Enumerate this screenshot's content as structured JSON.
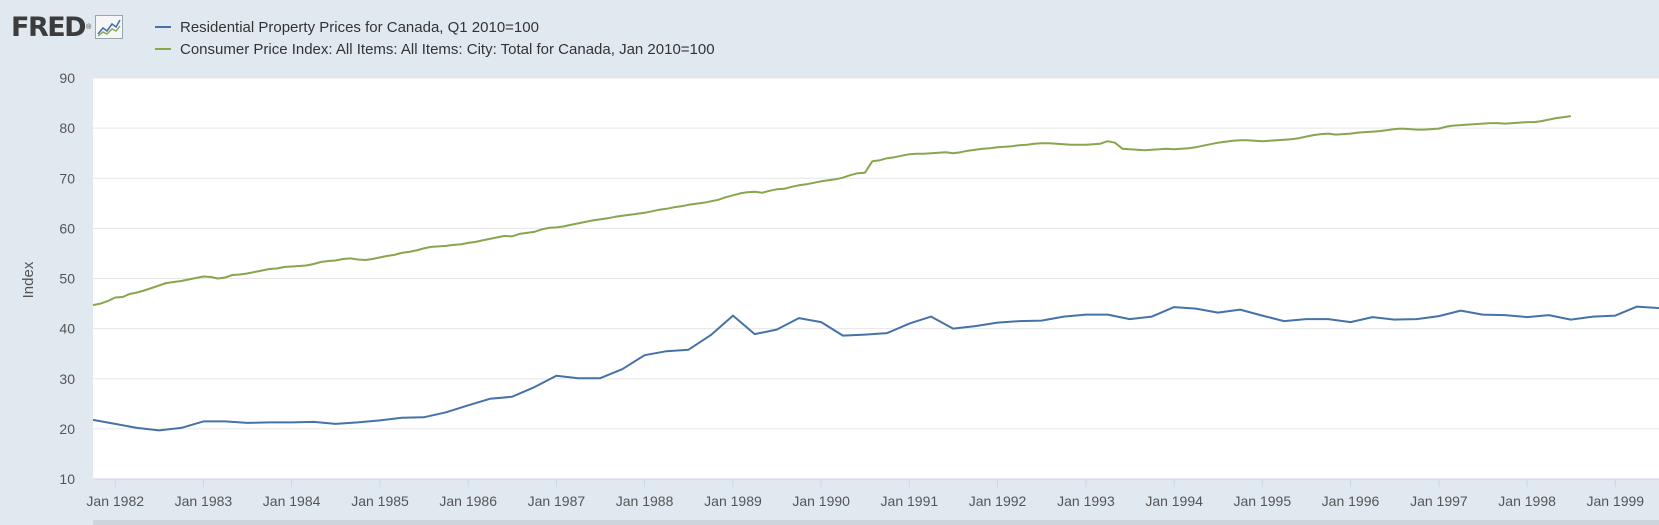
{
  "header": {
    "logo_text": "FRED",
    "logo_mark": "®",
    "logo_icon": "fred-chart-icon"
  },
  "colors": {
    "background": "#e1e9f0",
    "plot_background": "#ffffff",
    "gridline": "#e6e6e6",
    "series_property": "#4572a7",
    "series_cpi": "#89a54e"
  },
  "chart_data": {
    "type": "line",
    "title": "",
    "xlabel": "",
    "ylabel": "Index",
    "ylim": [
      10,
      90
    ],
    "yticks": [
      10,
      20,
      30,
      40,
      50,
      60,
      70,
      80,
      90
    ],
    "xlim": [
      "1981-10-01",
      "1999-07-01"
    ],
    "xticks": [
      {
        "date": "1982-01-01",
        "label": "Jan 1982"
      },
      {
        "date": "1983-01-01",
        "label": "Jan 1983"
      },
      {
        "date": "1984-01-01",
        "label": "Jan 1984"
      },
      {
        "date": "1985-01-01",
        "label": "Jan 1985"
      },
      {
        "date": "1986-01-01",
        "label": "Jan 1986"
      },
      {
        "date": "1987-01-01",
        "label": "Jan 1987"
      },
      {
        "date": "1988-01-01",
        "label": "Jan 1988"
      },
      {
        "date": "1989-01-01",
        "label": "Jan 1989"
      },
      {
        "date": "1990-01-01",
        "label": "Jan 1990"
      },
      {
        "date": "1991-01-01",
        "label": "Jan 1991"
      },
      {
        "date": "1992-01-01",
        "label": "Jan 1992"
      },
      {
        "date": "1993-01-01",
        "label": "Jan 1993"
      },
      {
        "date": "1994-01-01",
        "label": "Jan 1994"
      },
      {
        "date": "1995-01-01",
        "label": "Jan 1995"
      },
      {
        "date": "1996-01-01",
        "label": "Jan 1996"
      },
      {
        "date": "1997-01-01",
        "label": "Jan 1997"
      },
      {
        "date": "1998-01-01",
        "label": "Jan 1998"
      },
      {
        "date": "1999-01-01",
        "label": "Jan 1999"
      }
    ],
    "grid": true,
    "legend_position": "top-left",
    "series": [
      {
        "name": "Residential Property Prices for Canada, Q1 2010=100",
        "color": "#4572a7",
        "frequency": "quarterly",
        "x": [
          "1981-10-01",
          "1982-01-01",
          "1982-04-01",
          "1982-07-01",
          "1982-10-01",
          "1983-01-01",
          "1983-04-01",
          "1983-07-01",
          "1983-10-01",
          "1984-01-01",
          "1984-04-01",
          "1984-07-01",
          "1984-10-01",
          "1985-01-01",
          "1985-04-01",
          "1985-07-01",
          "1985-10-01",
          "1986-01-01",
          "1986-04-01",
          "1986-07-01",
          "1986-10-01",
          "1987-01-01",
          "1987-04-01",
          "1987-07-01",
          "1987-10-01",
          "1988-01-01",
          "1988-04-01",
          "1988-07-01",
          "1988-10-01",
          "1989-01-01",
          "1989-04-01",
          "1989-07-01",
          "1989-10-01",
          "1990-01-01",
          "1990-04-01",
          "1990-07-01",
          "1990-10-01",
          "1991-01-01",
          "1991-04-01",
          "1991-07-01",
          "1991-10-01",
          "1992-01-01",
          "1992-04-01",
          "1992-07-01",
          "1992-10-01",
          "1993-01-01",
          "1993-04-01",
          "1993-07-01",
          "1993-10-01",
          "1994-01-01",
          "1994-04-01",
          "1994-07-01",
          "1994-10-01",
          "1995-01-01",
          "1995-04-01",
          "1995-07-01",
          "1995-10-01",
          "1996-01-01",
          "1996-04-01",
          "1996-07-01",
          "1996-10-01",
          "1997-01-01",
          "1997-04-01",
          "1997-07-01",
          "1997-10-01",
          "1998-01-01",
          "1998-04-01",
          "1998-07-01",
          "1998-10-01",
          "1999-01-01",
          "1999-04-01",
          "1999-07-01"
        ],
        "values": [
          21.8,
          21.0,
          20.2,
          19.7,
          20.2,
          21.5,
          21.5,
          21.2,
          21.3,
          21.3,
          21.4,
          21.0,
          21.3,
          21.7,
          22.2,
          22.3,
          23.3,
          24.7,
          26.0,
          26.4,
          28.3,
          30.6,
          30.1,
          30.1,
          31.9,
          34.7,
          35.5,
          35.8,
          38.7,
          42.6,
          38.9,
          39.8,
          42.1,
          41.3,
          38.6,
          38.8,
          39.1,
          41.0,
          42.4,
          40.0,
          40.5,
          41.2,
          41.5,
          41.6,
          42.4,
          42.8,
          42.8,
          41.9,
          42.4,
          44.3,
          44.0,
          43.2,
          43.8,
          42.6,
          41.5,
          41.9,
          41.9,
          41.3,
          42.3,
          41.8,
          41.9,
          42.5,
          43.6,
          42.8,
          42.7,
          42.3,
          42.7,
          41.8,
          42.4,
          42.6,
          44.4,
          44.1
        ]
      },
      {
        "name": "Consumer Price Index: All Items: All Items: City: Total for Canada, Jan 2010=100",
        "color": "#89a54e",
        "frequency": "monthly",
        "start": "1981-10-01",
        "values": [
          44.7,
          45.0,
          45.5,
          46.2,
          46.3,
          46.9,
          47.2,
          47.6,
          48.1,
          48.6,
          49.1,
          49.3,
          49.5,
          49.8,
          50.1,
          50.4,
          50.3,
          50.0,
          50.2,
          50.7,
          50.8,
          51.0,
          51.3,
          51.6,
          51.9,
          52.0,
          52.3,
          52.4,
          52.5,
          52.6,
          52.9,
          53.3,
          53.5,
          53.6,
          53.9,
          54.0,
          53.8,
          53.7,
          53.9,
          54.2,
          54.5,
          54.7,
          55.1,
          55.3,
          55.6,
          56.0,
          56.3,
          56.4,
          56.5,
          56.7,
          56.8,
          57.1,
          57.3,
          57.6,
          57.9,
          58.2,
          58.5,
          58.4,
          58.9,
          59.1,
          59.3,
          59.8,
          60.1,
          60.2,
          60.4,
          60.7,
          61.0,
          61.3,
          61.6,
          61.8,
          62.0,
          62.3,
          62.5,
          62.7,
          62.9,
          63.1,
          63.4,
          63.7,
          63.9,
          64.2,
          64.4,
          64.7,
          64.9,
          65.1,
          65.4,
          65.7,
          66.2,
          66.6,
          67.0,
          67.2,
          67.3,
          67.1,
          67.5,
          67.8,
          67.9,
          68.3,
          68.6,
          68.8,
          69.1,
          69.4,
          69.6,
          69.8,
          70.1,
          70.6,
          71.0,
          71.1,
          73.4,
          73.6,
          74.0,
          74.2,
          74.5,
          74.8,
          74.9,
          74.9,
          75.0,
          75.1,
          75.2,
          75.0,
          75.2,
          75.5,
          75.7,
          75.9,
          76.0,
          76.2,
          76.3,
          76.4,
          76.6,
          76.7,
          76.9,
          77.0,
          77.0,
          76.9,
          76.8,
          76.7,
          76.7,
          76.7,
          76.8,
          76.9,
          77.4,
          77.1,
          75.9,
          75.8,
          75.7,
          75.6,
          75.7,
          75.8,
          75.9,
          75.8,
          75.9,
          76.0,
          76.2,
          76.5,
          76.8,
          77.1,
          77.3,
          77.5,
          77.6,
          77.6,
          77.5,
          77.4,
          77.5,
          77.6,
          77.7,
          77.8,
          78.0,
          78.3,
          78.6,
          78.8,
          78.9,
          78.7,
          78.8,
          78.9,
          79.1,
          79.2,
          79.3,
          79.4,
          79.6,
          79.8,
          79.9,
          79.8,
          79.7,
          79.7,
          79.8,
          79.9,
          80.3,
          80.5,
          80.6,
          80.7,
          80.8,
          80.9,
          81.0,
          81.0,
          80.9,
          81.0,
          81.1,
          81.2,
          81.2,
          81.4,
          81.7,
          82.0,
          82.2,
          82.4
        ]
      }
    ]
  },
  "scrollbar": {
    "label": "navigator-scrollbar"
  }
}
